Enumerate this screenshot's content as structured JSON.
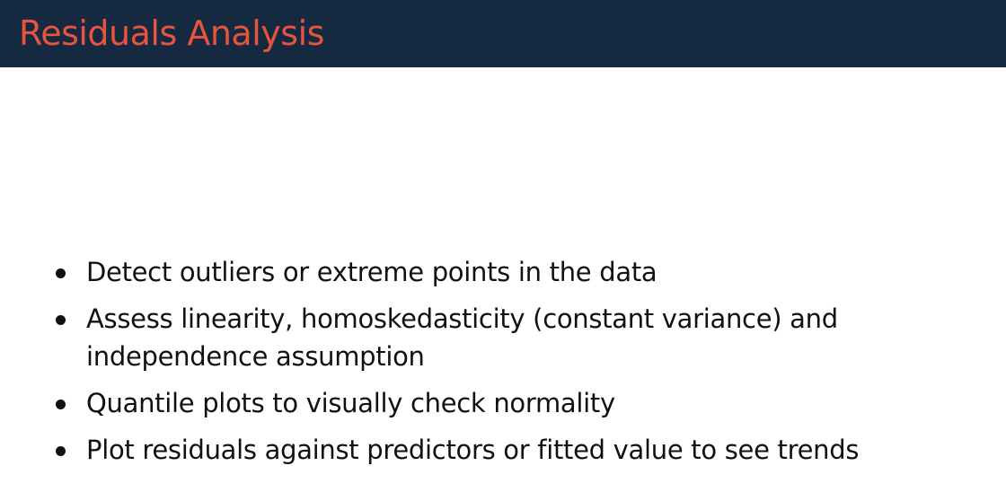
{
  "slide": {
    "title": "Residuals Analysis",
    "colors": {
      "title_bar": "#152a40",
      "title_text": "#e8533e",
      "body_text": "#111111"
    },
    "bullets": [
      "Detect outliers or extreme points in the data",
      "Assess linearity, homoskedasticity (constant variance) and independence assumption",
      "Quantile plots to visually check normality",
      "Plot residuals against predictors or fitted value to see trends"
    ]
  }
}
